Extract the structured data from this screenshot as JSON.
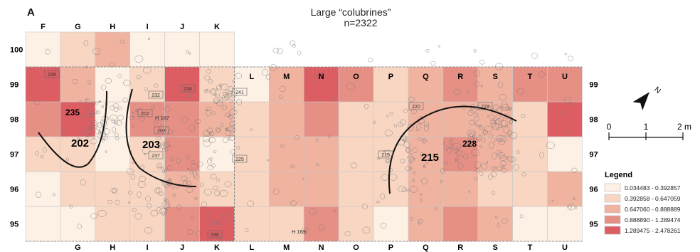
{
  "panel_label": "A",
  "title": "Large “colubrines”",
  "subtitle": "n=2322",
  "columns_top": [
    "F",
    "G",
    "H",
    "I",
    "J",
    "K"
  ],
  "columns_bottom": [
    "G",
    "H",
    "I",
    "J",
    "K",
    "L",
    "M",
    "N",
    "O",
    "P",
    "Q",
    "R",
    "S",
    "T",
    "U"
  ],
  "columns_right_block": [
    "L",
    "M",
    "N",
    "O",
    "P",
    "Q",
    "R",
    "S",
    "T",
    "U"
  ],
  "rows_left": [
    "100",
    "99",
    "98",
    "97",
    "96",
    "95"
  ],
  "rows_right": [
    "99",
    "98",
    "97",
    "96",
    "95"
  ],
  "colors": {
    "c1": "#fdf1e6",
    "c2": "#f8d6c2",
    "c3": "#efb3a0",
    "c4": "#e68f85",
    "c5": "#dc5e63"
  },
  "grid": {
    "upper": {
      "cols": [
        "F",
        "G",
        "H",
        "I",
        "J",
        "K"
      ],
      "rows": {
        "100": [
          1,
          2,
          3,
          1,
          1,
          1
        ]
      }
    },
    "main": {
      "cols": [
        "F",
        "G",
        "H",
        "I",
        "J",
        "K",
        "L",
        "M",
        "N",
        "O",
        "P",
        "Q",
        "R",
        "S",
        "T",
        "U"
      ],
      "rows": {
        "99": [
          5,
          3,
          1,
          2,
          5,
          2,
          1,
          3,
          5,
          4,
          2,
          3,
          4,
          3,
          4,
          4
        ],
        "98": [
          4,
          5,
          1,
          4,
          4,
          3,
          2,
          3,
          4,
          2,
          2,
          3,
          3,
          3,
          2,
          5
        ],
        "97": [
          2,
          2,
          1,
          2,
          4,
          1,
          2,
          3,
          3,
          2,
          2,
          3,
          4,
          3,
          2,
          1
        ],
        "96": [
          1,
          2,
          2,
          2,
          3,
          2,
          2,
          3,
          3,
          2,
          2,
          3,
          3,
          2,
          2,
          3
        ],
        "95": [
          1,
          1,
          2,
          2,
          4,
          5,
          2,
          2,
          4,
          2,
          1,
          3,
          4,
          3,
          1,
          1
        ]
      }
    }
  },
  "structures": [
    {
      "id": "235"
    },
    {
      "id": "202"
    },
    {
      "id": "203"
    },
    {
      "id": "215"
    },
    {
      "id": "228"
    }
  ],
  "small_tags": [
    "236",
    "232",
    "202",
    "203",
    "234",
    "237",
    "241",
    "225",
    "220",
    "229",
    "215",
    "230"
  ],
  "sample_labels": [
    "H 167",
    "H 169"
  ],
  "scale": {
    "ticks": [
      "0",
      "1",
      "2 m"
    ]
  },
  "north": "N",
  "legend": {
    "title": "Legend",
    "items": [
      {
        "label": "0.034483 - 0.392857",
        "color": "#fdf1e6"
      },
      {
        "label": "0.392858 - 0.647059",
        "color": "#f8d6c2"
      },
      {
        "label": "0.647060 - 0.888889",
        "color": "#efb3a0"
      },
      {
        "label": "0.888890 - 1.289474",
        "color": "#e68f85"
      },
      {
        "label": "1.289475 - 2.478261",
        "color": "#dc5e63"
      }
    ]
  }
}
